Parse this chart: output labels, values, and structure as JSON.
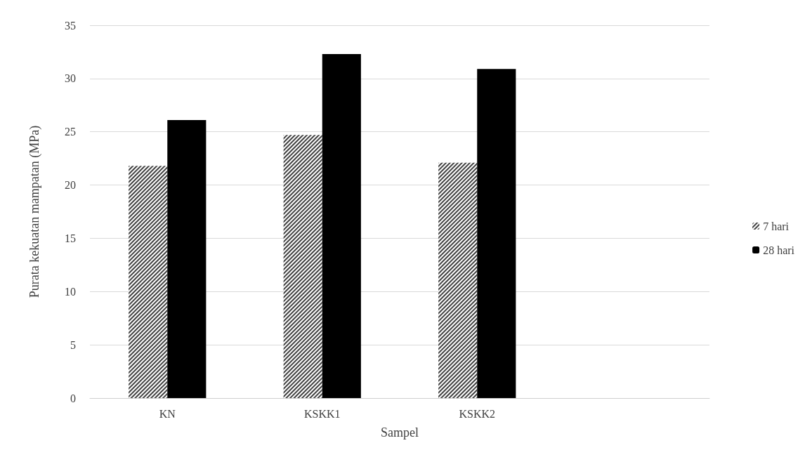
{
  "chart_data": {
    "type": "bar",
    "xlabel": "Sampel",
    "ylabel": "Purata kekuatan mampatan (MPa)",
    "categories": [
      "KN",
      "KSKK1",
      "KSKK2",
      null
    ],
    "series": [
      {
        "name": "7 hari",
        "color": "#404040",
        "values": [
          21.8,
          24.7,
          22.1,
          null
        ]
      },
      {
        "name": "28 hari",
        "color": "#000000",
        "values": [
          26.1,
          32.3,
          30.9,
          null
        ]
      }
    ],
    "ylim": [
      0,
      35
    ],
    "yticks": [
      0,
      5,
      10,
      15,
      20,
      25,
      30,
      35
    ],
    "grid": "y",
    "legend": "right"
  }
}
